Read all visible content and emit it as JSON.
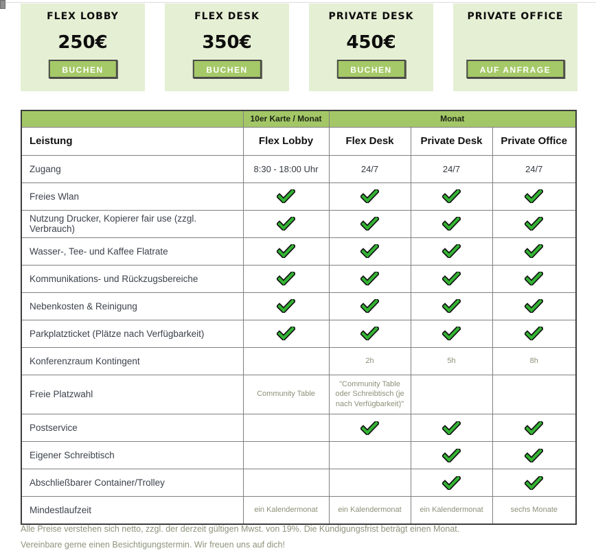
{
  "cards": [
    {
      "title": "Flex Lobby",
      "price": "250€",
      "button": "BUCHEN"
    },
    {
      "title": "Flex Desk",
      "price": "350€",
      "button": "BUCHEN"
    },
    {
      "title": "Private Desk",
      "price": "450€",
      "button": "BUCHEN"
    },
    {
      "title": "Private Office",
      "price": "",
      "button": "AUF ANFRAGE"
    }
  ],
  "table": {
    "group_headers": {
      "left": "10er Karte / Monat",
      "right": "Monat"
    },
    "columns": [
      "Leistung",
      "Flex Lobby",
      "Flex Desk",
      "Private Desk",
      "Private Office"
    ],
    "rows": [
      {
        "label": "Zugang",
        "strong": true,
        "values": [
          "8:30 - 18:00 Uhr",
          "24/7",
          "24/7",
          "24/7"
        ]
      },
      {
        "label": "Freies Wlan",
        "values": [
          "✓",
          "✓",
          "✓",
          "✓"
        ]
      },
      {
        "label": "Nutzung Drucker, Kopierer fair use (zzgl. Verbrauch)",
        "values": [
          "✓",
          "✓",
          "✓",
          "✓"
        ]
      },
      {
        "label": "Wasser-, Tee- und Kaffee Flatrate",
        "values": [
          "✓",
          "✓",
          "✓",
          "✓"
        ]
      },
      {
        "label": "Kommunikations- und Rückzugsbereiche",
        "values": [
          "✓",
          "✓",
          "✓",
          "✓"
        ]
      },
      {
        "label": "Nebenkosten & Reinigung",
        "values": [
          "✓",
          "✓",
          "✓",
          "✓"
        ]
      },
      {
        "label": "Parkplatzticket (Plätze nach Verfügbarkeit)",
        "values": [
          "✓",
          "✓",
          "✓",
          "✓"
        ]
      },
      {
        "label": "Konferenzraum Kontingent",
        "values": [
          "",
          "2h",
          "5h",
          "8h"
        ]
      },
      {
        "label": "Freie Platzwahl",
        "values": [
          "Community Table",
          "\"Community Table oder Schreibtisch (je nach Verfügbarkeit)\"",
          "",
          ""
        ]
      },
      {
        "label": "Postservice",
        "values": [
          "",
          "✓",
          "✓",
          "✓"
        ]
      },
      {
        "label": "Eigener Schreibtisch",
        "values": [
          "",
          "",
          "✓",
          "✓"
        ]
      },
      {
        "label": "Abschließbarer Container/Trolley",
        "values": [
          "",
          "",
          "✓",
          "✓"
        ]
      },
      {
        "label": "Mindestlaufzeit",
        "values": [
          "ein Kalendermonat",
          "ein Kalendermonat",
          "ein Kalendermonat",
          "sechs Monate"
        ]
      }
    ]
  },
  "footer": {
    "line1": "Alle Preise verstehen sich netto, zzgl. der derzeit gültigen Mwst. von 19%. Die Kündigungsfrist beträgt einen Monat.",
    "line2": "Vereinbare gerne einen Besichtigungstermin. Wir freuen uns auf dich!"
  },
  "icons": {
    "check": "check-icon"
  },
  "colors": {
    "card_bg": "#e5efd4",
    "button_green": "#a5c968",
    "band_green": "#a3c767",
    "check_green": "#33b533",
    "dark_text": "#3c414b",
    "muted_text": "#8b9178",
    "footer_text": "#8d947b"
  }
}
